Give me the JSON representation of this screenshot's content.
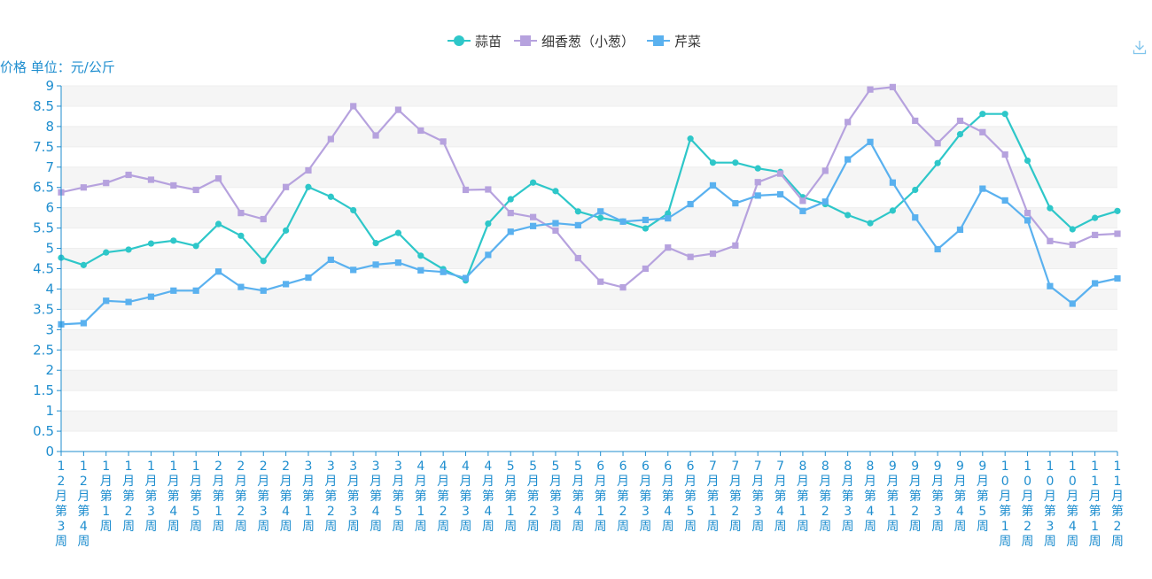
{
  "chart_data": {
    "type": "line",
    "ylabel": "价格 单位：元/公斤",
    "ylim": [
      0,
      9
    ],
    "yticks": [
      "0",
      "0.5",
      "1",
      "1.5",
      "2",
      "2.5",
      "3",
      "3.5",
      "4",
      "4.5",
      "5",
      "5.5",
      "6",
      "6.5",
      "7",
      "7.5",
      "8",
      "8.5",
      "9"
    ],
    "ytick_values": [
      0,
      0.5,
      1,
      1.5,
      2,
      2.5,
      3,
      3.5,
      4,
      4.5,
      5,
      5.5,
      6,
      6.5,
      7,
      7.5,
      8,
      8.5,
      9
    ],
    "grid": true,
    "legend_position": "top-center",
    "categories": [
      "12月第3周",
      "12月第4周",
      "1月第1周",
      "1月第2周",
      "1月第3周",
      "1月第4周",
      "1月第5周",
      "2月第1周",
      "2月第2周",
      "2月第3周",
      "2月第4周",
      "3月第1周",
      "3月第2周",
      "3月第3周",
      "3月第4周",
      "3月第5周",
      "4月第1周",
      "4月第2周",
      "4月第3周",
      "4月第4周",
      "5月第1周",
      "5月第2周",
      "5月第3周",
      "5月第4周",
      "6月第1周",
      "6月第2周",
      "6月第3周",
      "6月第4周",
      "6月第5周",
      "7月第1周",
      "7月第2周",
      "7月第3周",
      "7月第4周",
      "8月第1周",
      "8月第2周",
      "8月第3周",
      "8月第4周",
      "9月第1周",
      "9月第2周",
      "9月第3周",
      "9月第4周",
      "9月第5周",
      "10月第1周",
      "10月第2周",
      "10月第3周",
      "10月第4周",
      "11月第1周",
      "11月第2周"
    ],
    "series": [
      {
        "name": "蒜苗",
        "color": "#2ec7c9",
        "marker": "circle",
        "values": [
          4.77,
          4.59,
          4.9,
          4.97,
          5.12,
          5.19,
          5.06,
          5.6,
          5.31,
          4.69,
          5.44,
          6.51,
          6.27,
          5.94,
          5.13,
          5.38,
          4.82,
          4.49,
          4.21,
          5.61,
          6.21,
          6.62,
          6.41,
          5.91,
          5.75,
          5.66,
          5.49,
          5.86,
          7.7,
          7.11,
          7.11,
          6.97,
          6.88,
          6.26,
          6.09,
          5.82,
          5.62,
          5.93,
          6.44,
          7.1,
          7.81,
          8.31,
          8.31,
          7.16,
          5.99,
          5.47,
          5.75,
          5.92
        ]
      },
      {
        "name": "细香葱（小葱）",
        "color": "#b6a2de",
        "marker": "square",
        "values": [
          6.38,
          6.5,
          6.61,
          6.81,
          6.69,
          6.55,
          6.44,
          6.72,
          5.87,
          5.72,
          6.51,
          6.92,
          7.69,
          8.5,
          7.78,
          8.41,
          7.9,
          7.63,
          6.44,
          6.45,
          5.87,
          5.77,
          5.44,
          4.76,
          4.18,
          4.04,
          4.5,
          5.02,
          4.79,
          4.87,
          5.07,
          6.63,
          6.84,
          6.17,
          6.91,
          8.11,
          8.91,
          8.97,
          8.14,
          7.59,
          8.14,
          7.86,
          7.31,
          5.87,
          5.18,
          5.09,
          5.33,
          5.36
        ]
      },
      {
        "name": "芹菜",
        "color": "#5ab1ef",
        "marker": "square",
        "values": [
          3.13,
          3.16,
          3.71,
          3.68,
          3.81,
          3.96,
          3.96,
          4.43,
          4.05,
          3.96,
          4.12,
          4.28,
          4.72,
          4.47,
          4.6,
          4.65,
          4.46,
          4.42,
          4.27,
          4.84,
          5.41,
          5.55,
          5.62,
          5.57,
          5.91,
          5.66,
          5.7,
          5.74,
          6.09,
          6.55,
          6.11,
          6.3,
          6.33,
          5.92,
          6.15,
          7.19,
          7.62,
          6.62,
          5.76,
          4.98,
          5.46,
          6.47,
          6.18,
          5.69,
          4.07,
          3.64,
          4.14,
          4.26
        ]
      }
    ]
  }
}
